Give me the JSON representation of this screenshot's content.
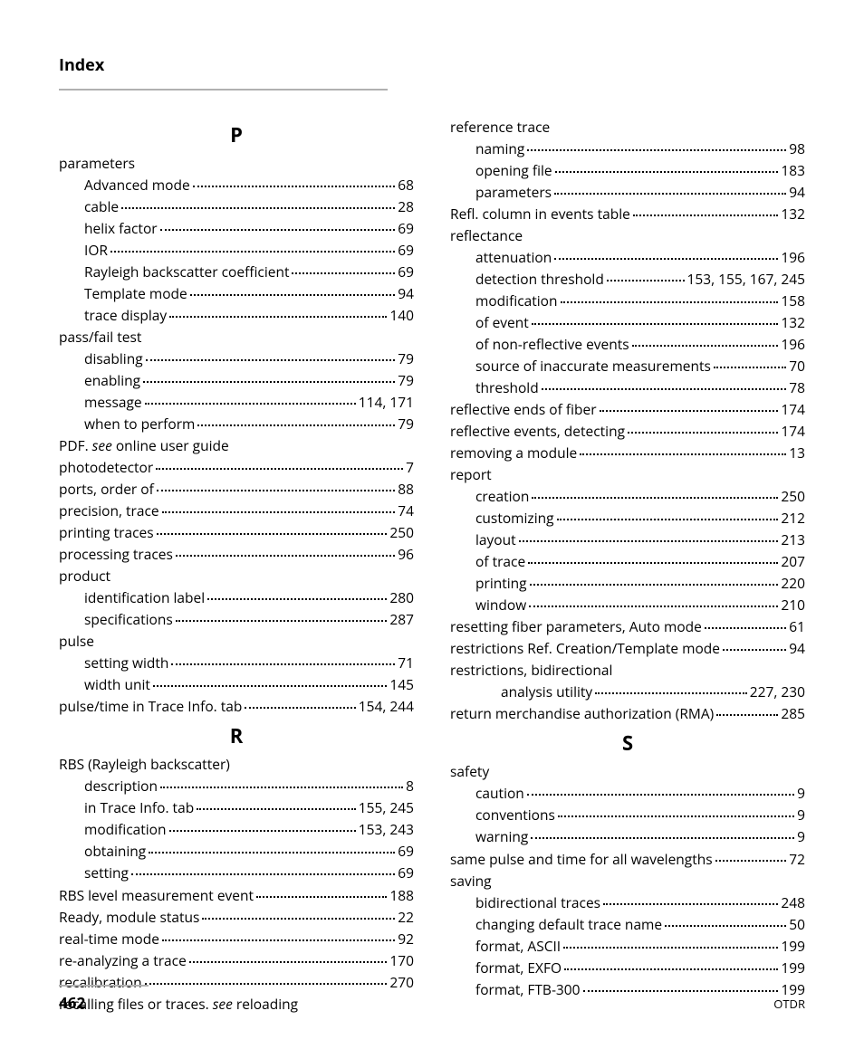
{
  "header": {
    "title": "Index"
  },
  "footer": {
    "page": "462",
    "doc": "OTDR"
  },
  "sections": {
    "P": {
      "letter": "P",
      "entries": [
        {
          "level": 0,
          "term": "parameters",
          "page": ""
        },
        {
          "level": 1,
          "term": "Advanced mode",
          "page": "68"
        },
        {
          "level": 1,
          "term": "cable",
          "page": "28"
        },
        {
          "level": 1,
          "term": "helix factor",
          "page": "69"
        },
        {
          "level": 1,
          "term": "IOR",
          "page": "69"
        },
        {
          "level": 1,
          "term": "Rayleigh backscatter coefficient",
          "page": "69"
        },
        {
          "level": 1,
          "term": "Template mode",
          "page": "94"
        },
        {
          "level": 1,
          "term": "trace display",
          "page": "140"
        },
        {
          "level": 0,
          "term": "pass/fail test",
          "page": ""
        },
        {
          "level": 1,
          "term": "disabling",
          "page": "79"
        },
        {
          "level": 1,
          "term": "enabling",
          "page": "79"
        },
        {
          "level": 1,
          "term": "message",
          "page": "114, 171"
        },
        {
          "level": 1,
          "term": "when to perform",
          "page": "79"
        },
        {
          "level": 0,
          "termParts": [
            {
              "text": "PDF. "
            },
            {
              "text": "see",
              "italic": true
            },
            {
              "text": " online user guide"
            }
          ],
          "page": ""
        },
        {
          "level": 0,
          "term": "photodetector",
          "page": "7"
        },
        {
          "level": 0,
          "term": "ports, order of",
          "page": "88"
        },
        {
          "level": 0,
          "term": "precision, trace",
          "page": "74"
        },
        {
          "level": 0,
          "term": "printing traces",
          "page": "250"
        },
        {
          "level": 0,
          "term": "processing traces",
          "page": "96"
        },
        {
          "level": 0,
          "term": "product",
          "page": ""
        },
        {
          "level": 1,
          "term": "identification label",
          "page": "280"
        },
        {
          "level": 1,
          "term": "specifications",
          "page": "287"
        },
        {
          "level": 0,
          "term": "pulse",
          "page": ""
        },
        {
          "level": 1,
          "term": "setting width",
          "page": "71"
        },
        {
          "level": 1,
          "term": "width unit",
          "page": "145"
        },
        {
          "level": 0,
          "term": "pulse/time in Trace Info. tab",
          "page": "154, 244"
        }
      ]
    },
    "R": {
      "letter": "R",
      "entries": [
        {
          "level": 0,
          "term": "RBS (Rayleigh backscatter)",
          "page": ""
        },
        {
          "level": 1,
          "term": "description",
          "page": "8"
        },
        {
          "level": 1,
          "term": "in Trace Info. tab",
          "page": "155, 245"
        },
        {
          "level": 1,
          "term": "modification",
          "page": "153, 243"
        },
        {
          "level": 1,
          "term": "obtaining",
          "page": "69"
        },
        {
          "level": 1,
          "term": "setting",
          "page": "69"
        },
        {
          "level": 0,
          "term": "RBS level measurement event",
          "page": "188"
        },
        {
          "level": 0,
          "term": "Ready, module status",
          "page": "22"
        },
        {
          "level": 0,
          "term": "real-time mode",
          "page": "92"
        },
        {
          "level": 0,
          "term": "re-analyzing a trace",
          "page": "170"
        },
        {
          "level": 0,
          "term": "recalibration",
          "page": "270"
        },
        {
          "level": 0,
          "termParts": [
            {
              "text": "recalling files or traces. "
            },
            {
              "text": "see",
              "italic": true
            },
            {
              "text": " reloading"
            }
          ],
          "page": ""
        }
      ]
    },
    "R2": {
      "entries": [
        {
          "level": 0,
          "term": "reference trace",
          "page": ""
        },
        {
          "level": 1,
          "term": "naming",
          "page": "98"
        },
        {
          "level": 1,
          "term": "opening file",
          "page": "183"
        },
        {
          "level": 1,
          "term": "parameters",
          "page": "94"
        },
        {
          "level": 0,
          "term": "Refl. column in events table",
          "page": "132"
        },
        {
          "level": 0,
          "term": "reflectance",
          "page": ""
        },
        {
          "level": 1,
          "term": "attenuation",
          "page": "196"
        },
        {
          "level": 1,
          "term": "detection threshold",
          "page": "153, 155, 167, 245"
        },
        {
          "level": 1,
          "term": "modification",
          "page": "158"
        },
        {
          "level": 1,
          "term": "of event",
          "page": "132"
        },
        {
          "level": 1,
          "term": "of non-reflective events",
          "page": "196"
        },
        {
          "level": 1,
          "term": "source of inaccurate measurements",
          "page": "70"
        },
        {
          "level": 1,
          "term": "threshold",
          "page": "78"
        },
        {
          "level": 0,
          "term": "reflective ends of fiber",
          "page": "174"
        },
        {
          "level": 0,
          "term": "reflective events, detecting",
          "page": "174"
        },
        {
          "level": 0,
          "term": "removing a module",
          "page": "13"
        },
        {
          "level": 0,
          "term": "report",
          "page": ""
        },
        {
          "level": 1,
          "term": "creation",
          "page": "250"
        },
        {
          "level": 1,
          "term": "customizing",
          "page": "212"
        },
        {
          "level": 1,
          "term": "layout",
          "page": "213"
        },
        {
          "level": 1,
          "term": "of trace",
          "page": "207"
        },
        {
          "level": 1,
          "term": "printing",
          "page": "220"
        },
        {
          "level": 1,
          "term": "window",
          "page": "210"
        },
        {
          "level": 0,
          "term": "resetting fiber parameters, Auto mode",
          "page": "61"
        },
        {
          "level": 0,
          "term": "restrictions Ref. Creation/Template mode",
          "page": "94"
        },
        {
          "level": 0,
          "term": "restrictions, bidirectional",
          "page": ""
        },
        {
          "level": 2,
          "term": "analysis utility",
          "page": "227, 230"
        },
        {
          "level": 0,
          "term": "return merchandise authorization (RMA)",
          "page": "285"
        }
      ]
    },
    "S": {
      "letter": "S",
      "entries": [
        {
          "level": 0,
          "term": "safety",
          "page": ""
        },
        {
          "level": 1,
          "term": "caution",
          "page": "9"
        },
        {
          "level": 1,
          "term": "conventions",
          "page": "9"
        },
        {
          "level": 1,
          "term": "warning",
          "page": "9"
        },
        {
          "level": 0,
          "term": "same pulse and time for all wavelengths",
          "page": "72"
        },
        {
          "level": 0,
          "term": "saving",
          "page": ""
        },
        {
          "level": 1,
          "term": "bidirectional traces",
          "page": "248"
        },
        {
          "level": 1,
          "term": "changing default trace name",
          "page": "50"
        },
        {
          "level": 1,
          "term": "format, ASCII",
          "page": "199"
        },
        {
          "level": 1,
          "term": "format, EXFO",
          "page": "199"
        },
        {
          "level": 1,
          "term": "format, FTB-300",
          "page": "199"
        }
      ]
    }
  }
}
